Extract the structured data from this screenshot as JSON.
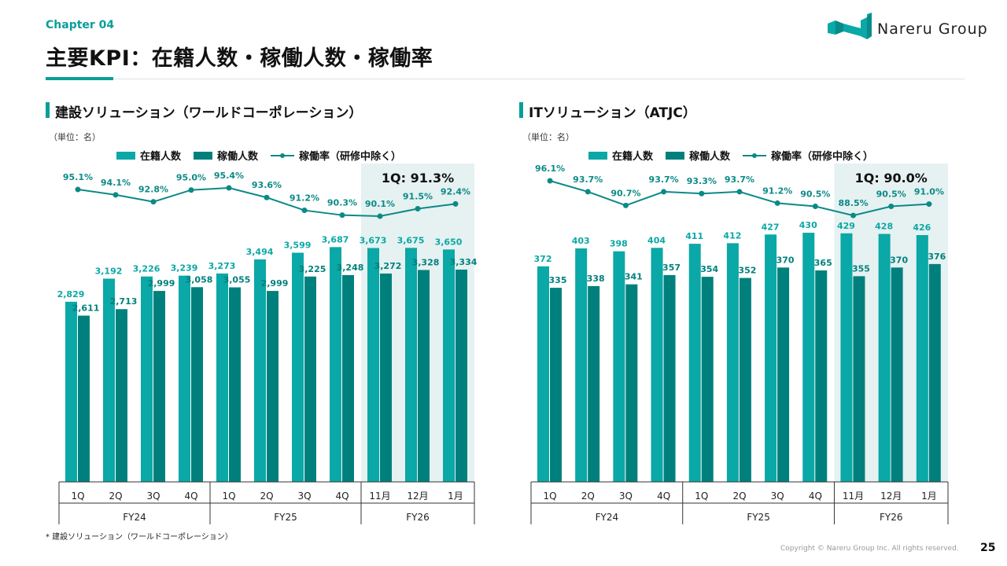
{
  "header": {
    "chapter": "Chapter 04",
    "title": "主要KPI：在籍人数・稼働人数・稼働率",
    "logo_text": "Nareru Group"
  },
  "colors": {
    "accent": "#0b9e99",
    "enrolled": "#0aa8a6",
    "active": "#00807d",
    "rate": "#0b8a86",
    "highlight": "#e6f1f1"
  },
  "legend": {
    "enrolled": "在籍人数",
    "active": "稼働人数",
    "rate": "稼働率（研修中除く）"
  },
  "chart_data": [
    {
      "type": "bar",
      "title": "建設ソリューション（ワールドコーポレーション）",
      "unit": "（単位：名）",
      "categories": [
        "1Q",
        "2Q",
        "3Q",
        "4Q",
        "1Q",
        "2Q",
        "3Q",
        "4Q",
        "11月",
        "12月",
        "1月"
      ],
      "groups": [
        "FY24",
        "FY25",
        "FY26"
      ],
      "highlight_label": "1Q: 91.3%",
      "series": [
        {
          "name": "在籍人数",
          "values": [
            2829,
            3192,
            3226,
            3239,
            3273,
            3494,
            3599,
            3687,
            3673,
            3675,
            3650
          ],
          "labels": [
            "2,829",
            "3,192",
            "3,226",
            "3,239",
            "3,273",
            "3,494",
            "3,599",
            "3,687",
            "3,673",
            "3,675",
            "3,650"
          ]
        },
        {
          "name": "稼働人数",
          "values": [
            2611,
            2713,
            2999,
            3058,
            3055,
            2999,
            3225,
            3248,
            3272,
            3328,
            3334
          ],
          "labels": [
            "2,611",
            "2,713",
            "2,999",
            "3,058",
            "3,055",
            "2,999",
            "3,225",
            "3,248",
            "3,272",
            "3,328",
            "3,334"
          ]
        },
        {
          "name": "稼働率（研修中除く）",
          "type": "line",
          "values": [
            95.1,
            94.1,
            92.8,
            95.0,
            95.4,
            93.6,
            91.2,
            90.3,
            90.1,
            91.5,
            92.4
          ],
          "labels": [
            "95.1%",
            "94.1%",
            "92.8%",
            "95.0%",
            "95.4%",
            "93.6%",
            "91.2%",
            "90.3%",
            "90.1%",
            "91.5%",
            "92.4%"
          ]
        }
      ]
    },
    {
      "type": "bar",
      "title": "ITソリューション（ATJC）",
      "unit": "（単位：名）",
      "categories": [
        "1Q",
        "2Q",
        "3Q",
        "4Q",
        "1Q",
        "2Q",
        "3Q",
        "4Q",
        "11月",
        "12月",
        "1月"
      ],
      "groups": [
        "FY24",
        "FY25",
        "FY26"
      ],
      "highlight_label": "1Q: 90.0%",
      "series": [
        {
          "name": "在籍人数",
          "values": [
            372,
            403,
            398,
            404,
            411,
            412,
            427,
            430,
            429,
            428,
            426
          ],
          "labels": [
            "372",
            "403",
            "398",
            "404",
            "411",
            "412",
            "427",
            "430",
            "429",
            "428",
            "426"
          ]
        },
        {
          "name": "稼働人数",
          "values": [
            335,
            338,
            341,
            357,
            354,
            352,
            370,
            365,
            355,
            370,
            376
          ],
          "labels": [
            "335",
            "338",
            "341",
            "357",
            "354",
            "352",
            "370",
            "365",
            "355",
            "370",
            "376"
          ]
        },
        {
          "name": "稼働率（研修中除く）",
          "type": "line",
          "values": [
            96.1,
            93.7,
            90.7,
            93.7,
            93.3,
            93.7,
            91.2,
            90.5,
            88.5,
            90.5,
            91.0
          ],
          "labels": [
            "96.1%",
            "93.7%",
            "90.7%",
            "93.7%",
            "93.3%",
            "93.7%",
            "91.2%",
            "90.5%",
            "88.5%",
            "90.5%",
            "91.0%"
          ]
        }
      ]
    }
  ],
  "footer": {
    "footnote": "* 建設ソリューション（ワールドコーポレーション）",
    "copyright": "Copyright © Nareru Group Inc. All rights reserved.",
    "page": "25"
  }
}
